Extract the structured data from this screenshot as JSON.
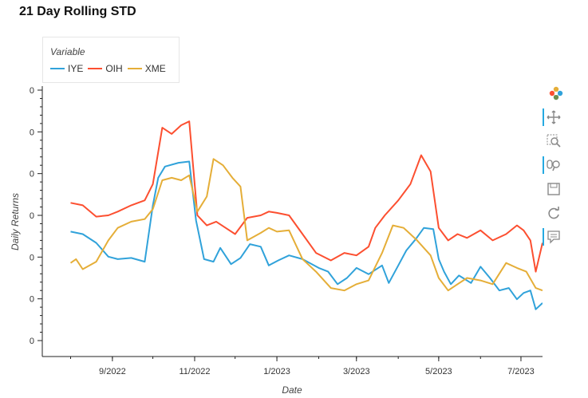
{
  "title": "21 Day Rolling STD",
  "legend": {
    "title": "Variable",
    "items": [
      {
        "label": "IYE",
        "color": "#30a2da"
      },
      {
        "label": "OIH",
        "color": "#fc4f30"
      },
      {
        "label": "XME",
        "color": "#e5ae38"
      }
    ]
  },
  "toolbar": {
    "tools": [
      "pan-icon",
      "box-zoom-icon",
      "wheel-zoom-icon",
      "save-icon",
      "reset-icon",
      "hover-icon"
    ]
  },
  "chart_data": {
    "type": "line",
    "title": "21 Day Rolling STD",
    "xlabel": "Date",
    "ylabel": "Daily Returns",
    "x_ticks": [
      "9/2022",
      "11/2022",
      "1/2023",
      "3/2023",
      "5/2023",
      "7/2023"
    ],
    "y_ticks": [
      "0",
      "0",
      "0",
      "0",
      "0",
      "0",
      "0"
    ],
    "x_range": [
      "2022-07-11",
      "2023-07-17"
    ],
    "y_range": [
      0.006,
      0.026
    ],
    "grid": false,
    "legend_position": "top-left",
    "series": [
      {
        "name": "IYE",
        "color": "#30a2da",
        "points": [
          [
            "2022-08-01",
            0.0147
          ],
          [
            "2022-08-10",
            0.0145
          ],
          [
            "2022-08-20",
            0.0138
          ],
          [
            "2022-08-29",
            0.0127
          ],
          [
            "2022-09-05",
            0.0125
          ],
          [
            "2022-09-15",
            0.0126
          ],
          [
            "2022-09-25",
            0.0123
          ],
          [
            "2022-10-01",
            0.0168
          ],
          [
            "2022-10-05",
            0.019
          ],
          [
            "2022-10-10",
            0.0199
          ],
          [
            "2022-10-20",
            0.0202
          ],
          [
            "2022-10-28",
            0.0203
          ],
          [
            "2022-11-02",
            0.0156
          ],
          [
            "2022-11-08",
            0.0125
          ],
          [
            "2022-11-15",
            0.0123
          ],
          [
            "2022-11-20",
            0.0134
          ],
          [
            "2022-11-28",
            0.0121
          ],
          [
            "2022-12-05",
            0.0126
          ],
          [
            "2022-12-12",
            0.0137
          ],
          [
            "2022-12-20",
            0.0135
          ],
          [
            "2022-12-26",
            0.012
          ],
          [
            "2023-01-02",
            0.0124
          ],
          [
            "2023-01-10",
            0.0128
          ],
          [
            "2023-01-20",
            0.0125
          ],
          [
            "2023-02-01",
            0.0118
          ],
          [
            "2023-02-08",
            0.0115
          ],
          [
            "2023-02-15",
            0.0105
          ],
          [
            "2023-02-22",
            0.011
          ],
          [
            "2023-03-01",
            0.0118
          ],
          [
            "2023-03-10",
            0.0113
          ],
          [
            "2023-03-20",
            0.012
          ],
          [
            "2023-03-25",
            0.0106
          ],
          [
            "2023-04-01",
            0.012
          ],
          [
            "2023-04-07",
            0.0132
          ],
          [
            "2023-04-14",
            0.0141
          ],
          [
            "2023-04-20",
            0.015
          ],
          [
            "2023-04-27",
            0.0149
          ],
          [
            "2023-05-01",
            0.0125
          ],
          [
            "2023-05-05",
            0.0115
          ],
          [
            "2023-05-10",
            0.0105
          ],
          [
            "2023-05-16",
            0.0112
          ],
          [
            "2023-05-25",
            0.0106
          ],
          [
            "2023-06-01",
            0.0119
          ],
          [
            "2023-06-08",
            0.011
          ],
          [
            "2023-06-15",
            0.01
          ],
          [
            "2023-06-22",
            0.0102
          ],
          [
            "2023-06-28",
            0.0093
          ],
          [
            "2023-07-03",
            0.0098
          ],
          [
            "2023-07-08",
            0.01
          ],
          [
            "2023-07-12",
            0.0085
          ],
          [
            "2023-07-17",
            0.009
          ]
        ]
      },
      {
        "name": "OIH",
        "color": "#fc4f30",
        "points": [
          [
            "2022-08-01",
            0.017
          ],
          [
            "2022-08-10",
            0.0168
          ],
          [
            "2022-08-20",
            0.0159
          ],
          [
            "2022-08-29",
            0.016
          ],
          [
            "2022-09-05",
            0.0163
          ],
          [
            "2022-09-15",
            0.0168
          ],
          [
            "2022-09-25",
            0.0172
          ],
          [
            "2022-10-01",
            0.0185
          ],
          [
            "2022-10-08",
            0.023
          ],
          [
            "2022-10-15",
            0.0225
          ],
          [
            "2022-10-22",
            0.0232
          ],
          [
            "2022-10-28",
            0.0235
          ],
          [
            "2022-11-03",
            0.016
          ],
          [
            "2022-11-10",
            0.0152
          ],
          [
            "2022-11-17",
            0.0155
          ],
          [
            "2022-11-24",
            0.015
          ],
          [
            "2022-12-01",
            0.0145
          ],
          [
            "2022-12-10",
            0.0158
          ],
          [
            "2022-12-20",
            0.016
          ],
          [
            "2022-12-26",
            0.0163
          ],
          [
            "2023-01-01",
            0.0162
          ],
          [
            "2023-01-10",
            0.016
          ],
          [
            "2023-01-20",
            0.0145
          ],
          [
            "2023-01-30",
            0.013
          ],
          [
            "2023-02-10",
            0.0124
          ],
          [
            "2023-02-20",
            0.013
          ],
          [
            "2023-03-01",
            0.0128
          ],
          [
            "2023-03-10",
            0.0135
          ],
          [
            "2023-03-15",
            0.015
          ],
          [
            "2023-03-22",
            0.016
          ],
          [
            "2023-04-01",
            0.0172
          ],
          [
            "2023-04-10",
            0.0185
          ],
          [
            "2023-04-18",
            0.0208
          ],
          [
            "2023-04-25",
            0.0195
          ],
          [
            "2023-05-01",
            0.015
          ],
          [
            "2023-05-08",
            0.014
          ],
          [
            "2023-05-15",
            0.0145
          ],
          [
            "2023-05-22",
            0.0142
          ],
          [
            "2023-06-01",
            0.0148
          ],
          [
            "2023-06-10",
            0.014
          ],
          [
            "2023-06-20",
            0.0145
          ],
          [
            "2023-06-28",
            0.0152
          ],
          [
            "2023-07-03",
            0.0148
          ],
          [
            "2023-07-08",
            0.014
          ],
          [
            "2023-07-12",
            0.0115
          ],
          [
            "2023-07-17",
            0.0138
          ]
        ]
      },
      {
        "name": "XME",
        "color": "#e5ae38",
        "points": [
          [
            "2022-08-01",
            0.0122
          ],
          [
            "2022-08-05",
            0.0125
          ],
          [
            "2022-08-10",
            0.0117
          ],
          [
            "2022-08-20",
            0.0123
          ],
          [
            "2022-08-29",
            0.014
          ],
          [
            "2022-09-05",
            0.015
          ],
          [
            "2022-09-15",
            0.0155
          ],
          [
            "2022-09-25",
            0.0157
          ],
          [
            "2022-10-01",
            0.0165
          ],
          [
            "2022-10-08",
            0.0188
          ],
          [
            "2022-10-15",
            0.019
          ],
          [
            "2022-10-22",
            0.0188
          ],
          [
            "2022-10-28",
            0.0192
          ],
          [
            "2022-11-03",
            0.0163
          ],
          [
            "2022-11-10",
            0.0175
          ],
          [
            "2022-11-15",
            0.0205
          ],
          [
            "2022-11-22",
            0.02
          ],
          [
            "2022-11-29",
            0.019
          ],
          [
            "2022-12-05",
            0.0183
          ],
          [
            "2022-12-10",
            0.014
          ],
          [
            "2022-12-20",
            0.0146
          ],
          [
            "2022-12-26",
            0.015
          ],
          [
            "2023-01-01",
            0.0147
          ],
          [
            "2023-01-10",
            0.0148
          ],
          [
            "2023-01-20",
            0.0125
          ],
          [
            "2023-01-30",
            0.0115
          ],
          [
            "2023-02-10",
            0.0102
          ],
          [
            "2023-02-20",
            0.01
          ],
          [
            "2023-03-01",
            0.0105
          ],
          [
            "2023-03-10",
            0.0108
          ],
          [
            "2023-03-20",
            0.013
          ],
          [
            "2023-03-28",
            0.0152
          ],
          [
            "2023-04-05",
            0.015
          ],
          [
            "2023-04-15",
            0.014
          ],
          [
            "2023-04-25",
            0.0128
          ],
          [
            "2023-05-01",
            0.011
          ],
          [
            "2023-05-08",
            0.01
          ],
          [
            "2023-05-15",
            0.0105
          ],
          [
            "2023-05-22",
            0.011
          ],
          [
            "2023-06-01",
            0.0108
          ],
          [
            "2023-06-10",
            0.0105
          ],
          [
            "2023-06-20",
            0.0122
          ],
          [
            "2023-06-28",
            0.0118
          ],
          [
            "2023-07-05",
            0.0115
          ],
          [
            "2023-07-12",
            0.0102
          ],
          [
            "2023-07-17",
            0.01
          ]
        ]
      }
    ]
  }
}
